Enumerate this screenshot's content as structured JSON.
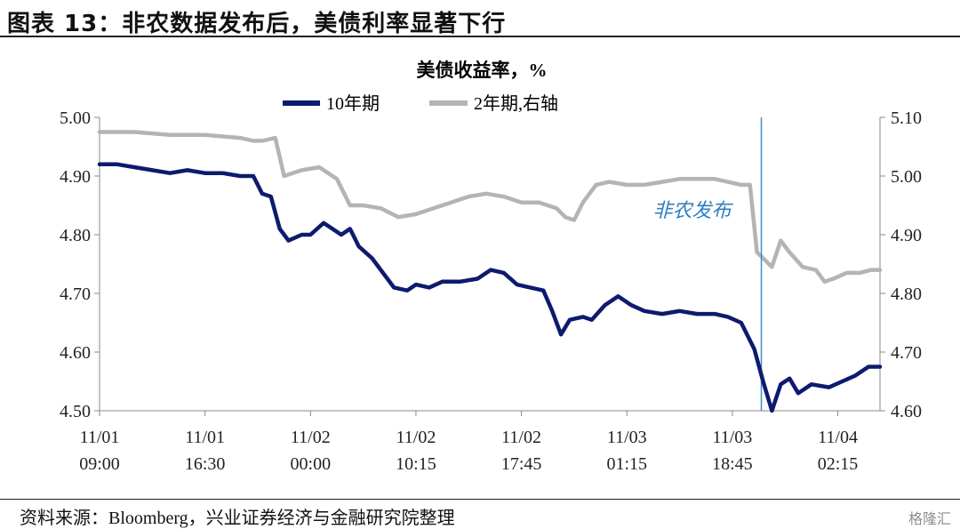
{
  "header": {
    "figure_title": "图表 13：非农数据发布后，美债利率显著下行"
  },
  "footer": {
    "source": "资料来源：Bloomberg，兴业证券经济与金融研究院整理",
    "watermark": "格隆汇"
  },
  "chart_data": {
    "type": "line",
    "title": "美债收益率，%",
    "grid": false,
    "legend_position": "top-center",
    "colors": {
      "10y": "#0d1b6e",
      "2y": "#b4b4b4",
      "event_line": "#3f8fc8",
      "annotation": "#2f7fbf"
    },
    "x_labels": [
      {
        "x": 0,
        "line1": "11/01",
        "line2": "09:00"
      },
      {
        "x": 120,
        "line1": "11/01",
        "line2": "16:30"
      },
      {
        "x": 240,
        "line1": "11/02",
        "line2": "00:00"
      },
      {
        "x": 360,
        "line1": "11/02",
        "line2": "10:15"
      },
      {
        "x": 480,
        "line1": "11/02",
        "line2": "17:45"
      },
      {
        "x": 600,
        "line1": "11/03",
        "line2": "01:15"
      },
      {
        "x": 720,
        "line1": "11/03",
        "line2": "18:45"
      },
      {
        "x": 840,
        "line1": "11/04",
        "line2": "02:15"
      }
    ],
    "x_range": [
      0,
      888
    ],
    "left_axis": {
      "range": [
        4.5,
        5.0
      ],
      "ticks": [
        "4.50",
        "4.60",
        "4.70",
        "4.80",
        "4.90",
        "5.00"
      ]
    },
    "right_axis": {
      "range": [
        4.6,
        5.1
      ],
      "ticks": [
        "4.60",
        "4.70",
        "4.80",
        "4.90",
        "5.00",
        "5.10"
      ]
    },
    "event": {
      "x": 753,
      "label": "非农发布"
    },
    "series": [
      {
        "name": "10年期",
        "axis": "left",
        "points": [
          [
            0,
            4.92
          ],
          [
            20,
            4.92
          ],
          [
            40,
            4.915
          ],
          [
            60,
            4.91
          ],
          [
            80,
            4.905
          ],
          [
            100,
            4.91
          ],
          [
            120,
            4.905
          ],
          [
            140,
            4.905
          ],
          [
            160,
            4.9
          ],
          [
            175,
            4.9
          ],
          [
            185,
            4.87
          ],
          [
            195,
            4.865
          ],
          [
            205,
            4.81
          ],
          [
            215,
            4.79
          ],
          [
            230,
            4.8
          ],
          [
            240,
            4.8
          ],
          [
            255,
            4.82
          ],
          [
            265,
            4.81
          ],
          [
            275,
            4.8
          ],
          [
            285,
            4.81
          ],
          [
            295,
            4.78
          ],
          [
            310,
            4.76
          ],
          [
            320,
            4.74
          ],
          [
            335,
            4.71
          ],
          [
            350,
            4.705
          ],
          [
            360,
            4.715
          ],
          [
            375,
            4.71
          ],
          [
            390,
            4.72
          ],
          [
            410,
            4.72
          ],
          [
            430,
            4.725
          ],
          [
            445,
            4.74
          ],
          [
            460,
            4.735
          ],
          [
            475,
            4.715
          ],
          [
            490,
            4.71
          ],
          [
            505,
            4.705
          ],
          [
            515,
            4.67
          ],
          [
            525,
            4.63
          ],
          [
            535,
            4.655
          ],
          [
            550,
            4.66
          ],
          [
            560,
            4.655
          ],
          [
            575,
            4.68
          ],
          [
            590,
            4.695
          ],
          [
            605,
            4.68
          ],
          [
            620,
            4.67
          ],
          [
            640,
            4.665
          ],
          [
            660,
            4.67
          ],
          [
            680,
            4.665
          ],
          [
            700,
            4.665
          ],
          [
            715,
            4.66
          ],
          [
            730,
            4.65
          ],
          [
            745,
            4.605
          ],
          [
            755,
            4.55
          ],
          [
            765,
            4.5
          ],
          [
            775,
            4.545
          ],
          [
            785,
            4.555
          ],
          [
            795,
            4.53
          ],
          [
            810,
            4.545
          ],
          [
            830,
            4.54
          ],
          [
            845,
            4.55
          ],
          [
            860,
            4.56
          ],
          [
            875,
            4.575
          ],
          [
            888,
            4.575
          ]
        ]
      },
      {
        "name": "2年期,右轴",
        "axis": "right",
        "points": [
          [
            0,
            5.075
          ],
          [
            40,
            5.075
          ],
          [
            80,
            5.07
          ],
          [
            120,
            5.07
          ],
          [
            160,
            5.065
          ],
          [
            175,
            5.06
          ],
          [
            185,
            5.06
          ],
          [
            200,
            5.065
          ],
          [
            210,
            5.0
          ],
          [
            230,
            5.01
          ],
          [
            250,
            5.015
          ],
          [
            270,
            4.995
          ],
          [
            285,
            4.95
          ],
          [
            300,
            4.95
          ],
          [
            320,
            4.945
          ],
          [
            340,
            4.93
          ],
          [
            360,
            4.935
          ],
          [
            380,
            4.945
          ],
          [
            400,
            4.955
          ],
          [
            420,
            4.965
          ],
          [
            440,
            4.97
          ],
          [
            460,
            4.965
          ],
          [
            480,
            4.955
          ],
          [
            500,
            4.955
          ],
          [
            520,
            4.945
          ],
          [
            530,
            4.93
          ],
          [
            540,
            4.925
          ],
          [
            550,
            4.955
          ],
          [
            565,
            4.985
          ],
          [
            580,
            4.99
          ],
          [
            600,
            4.985
          ],
          [
            620,
            4.985
          ],
          [
            640,
            4.99
          ],
          [
            660,
            4.995
          ],
          [
            680,
            4.995
          ],
          [
            700,
            4.995
          ],
          [
            715,
            4.99
          ],
          [
            730,
            4.985
          ],
          [
            740,
            4.985
          ],
          [
            748,
            4.87
          ],
          [
            755,
            4.86
          ],
          [
            765,
            4.845
          ],
          [
            775,
            4.89
          ],
          [
            785,
            4.87
          ],
          [
            800,
            4.845
          ],
          [
            815,
            4.84
          ],
          [
            825,
            4.82
          ],
          [
            835,
            4.825
          ],
          [
            850,
            4.835
          ],
          [
            865,
            4.835
          ],
          [
            878,
            4.84
          ],
          [
            888,
            4.84
          ]
        ]
      }
    ]
  }
}
